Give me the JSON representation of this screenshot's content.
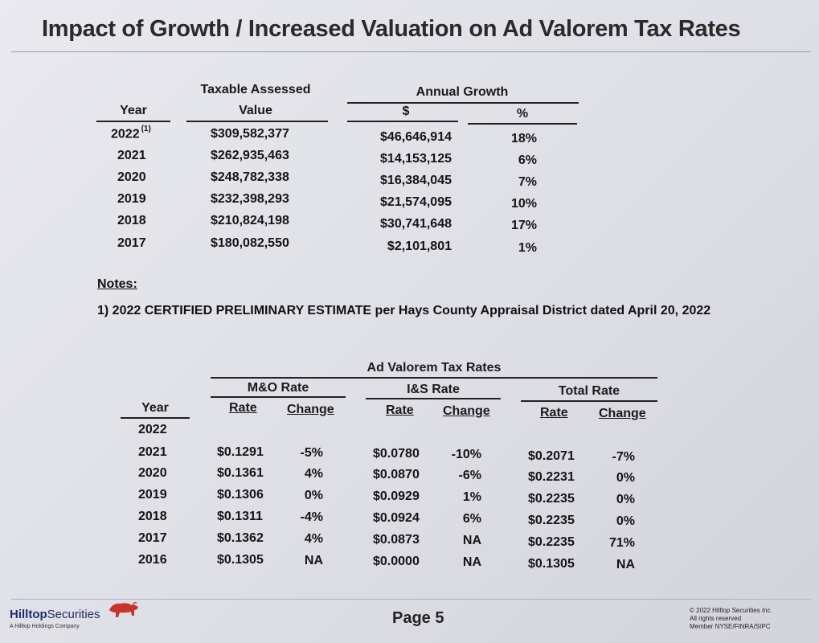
{
  "title": "Impact of Growth / Increased Valuation on Ad Valorem Tax Rates",
  "table1": {
    "headers": {
      "year": "Year",
      "tav_line1": "Taxable Assessed",
      "tav_line2": "Value",
      "annual_growth": "Annual Growth",
      "dollar": "$",
      "pct": "%"
    },
    "rows": [
      {
        "year": "2022",
        "footnote": "(1)",
        "value": "$309,582,377",
        "growth_dollar": "$46,646,914",
        "growth_pct": "18%"
      },
      {
        "year": "2021",
        "footnote": "",
        "value": "$262,935,463",
        "growth_dollar": "$14,153,125",
        "growth_pct": "6%"
      },
      {
        "year": "2020",
        "footnote": "",
        "value": "$248,782,338",
        "growth_dollar": "$16,384,045",
        "growth_pct": "7%"
      },
      {
        "year": "2019",
        "footnote": "",
        "value": "$232,398,293",
        "growth_dollar": "$21,574,095",
        "growth_pct": "10%"
      },
      {
        "year": "2018",
        "footnote": "",
        "value": "$210,824,198",
        "growth_dollar": "$30,741,648",
        "growth_pct": "17%"
      },
      {
        "year": "2017",
        "footnote": "",
        "value": "$180,082,550",
        "growth_dollar": "$2,101,801",
        "growth_pct": "1%"
      }
    ]
  },
  "notes": {
    "heading": "Notes:",
    "note1": "1) 2022 CERTIFIED PRELIMINARY ESTIMATE per Hays County Appraisal District dated April 20, 2022"
  },
  "table2": {
    "headers": {
      "group": "Ad Valorem Tax Rates",
      "mo": "M&O Rate",
      "is": "I&S Rate",
      "total": "Total Rate",
      "year": "Year",
      "rate": "Rate",
      "change": "Change"
    },
    "rows": [
      {
        "year": "2022",
        "mo_rate": "",
        "mo_change": "",
        "is_rate": "",
        "is_change": "",
        "total_rate": "",
        "total_change": ""
      },
      {
        "year": "2021",
        "mo_rate": "$0.1291",
        "mo_change": "-5%",
        "is_rate": "$0.0780",
        "is_change": "-10%",
        "total_rate": "$0.2071",
        "total_change": "-7%"
      },
      {
        "year": "2020",
        "mo_rate": "$0.1361",
        "mo_change": "4%",
        "is_rate": "$0.0870",
        "is_change": "-6%",
        "total_rate": "$0.2231",
        "total_change": "0%"
      },
      {
        "year": "2019",
        "mo_rate": "$0.1306",
        "mo_change": "0%",
        "is_rate": "$0.0929",
        "is_change": "1%",
        "total_rate": "$0.2235",
        "total_change": "0%"
      },
      {
        "year": "2018",
        "mo_rate": "$0.1311",
        "mo_change": "-4%",
        "is_rate": "$0.0924",
        "is_change": "6%",
        "total_rate": "$0.2235",
        "total_change": "0%"
      },
      {
        "year": "2017",
        "mo_rate": "$0.1362",
        "mo_change": "4%",
        "is_rate": "$0.0873",
        "is_change": "NA",
        "total_rate": "$0.2235",
        "total_change": "71%"
      },
      {
        "year": "2016",
        "mo_rate": "$0.1305",
        "mo_change": "NA",
        "is_rate": "$0.0000",
        "is_change": "NA",
        "total_rate": "$0.1305",
        "total_change": "NA"
      }
    ]
  },
  "footer": {
    "logo_bold": "Hilltop",
    "logo_thin": "Securities",
    "logo_sub": "A Hilltop Holdings Company",
    "page": "Page 5",
    "copyright_1": "© 2022 Hilltop Securities Inc.",
    "copyright_2": "All rights reserved",
    "copyright_3": "Member NYSE/FINRA/SIPC",
    "accent_color": "#c8342c",
    "brand_color": "#1f2f66"
  }
}
